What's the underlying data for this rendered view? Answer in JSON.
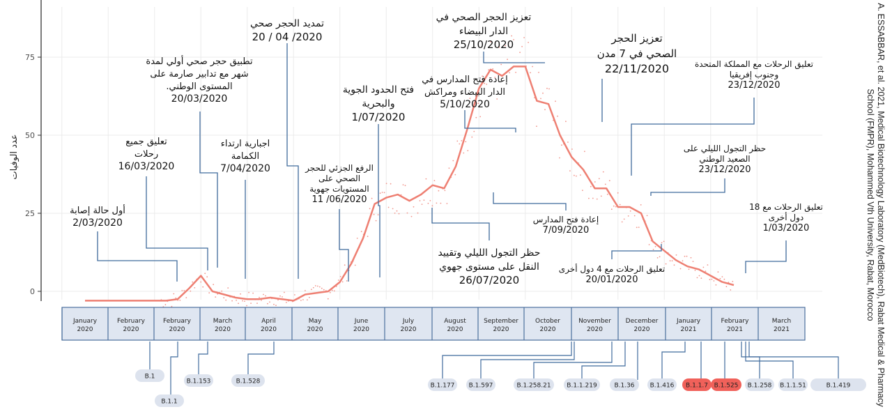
{
  "chart_data": {
    "type": "line",
    "ylabel": "عدد الوفيات",
    "y_ticks": [
      0,
      25,
      50,
      75
    ],
    "ylim": [
      -3,
      90
    ],
    "x_range_months": [
      0,
      14.5
    ],
    "smoothed_series": {
      "x": [
        0,
        0.5,
        1,
        1.5,
        1.75,
        2.0,
        2.25,
        2.5,
        2.75,
        3.0,
        3.25,
        3.5,
        3.75,
        4.0,
        4.25,
        4.5,
        4.75,
        5.0,
        5.25,
        5.5,
        5.75,
        6.0,
        6.25,
        6.5,
        6.75,
        7.0,
        7.25,
        7.5,
        7.75,
        8.0,
        8.25,
        8.5,
        8.75,
        9.0,
        9.25,
        9.5,
        9.75,
        10.0,
        10.25,
        10.5,
        10.75,
        11.0,
        11.25,
        11.5,
        11.75,
        12.0,
        12.25,
        12.5,
        12.75,
        13.0,
        13.25,
        13.5,
        13.75,
        14.0
      ],
      "y": [
        -3,
        -3,
        -3,
        -3,
        -3,
        -2.5,
        1,
        5,
        0,
        -1,
        -2,
        -2.5,
        -2.5,
        -2,
        -2.5,
        -3,
        -1,
        -0.5,
        0,
        3,
        9,
        17,
        28,
        30,
        31,
        29,
        31,
        34,
        33,
        40,
        52,
        65,
        71,
        69,
        72,
        72,
        61,
        60,
        50,
        43,
        39,
        33,
        33,
        27,
        27,
        25,
        16,
        13,
        10,
        8,
        7,
        5,
        3,
        2
      ]
    },
    "events": [
      {
        "lines": [
          "أول حالة إصابة",
          "2/03/2020"
        ]
      },
      {
        "lines": [
          "تعليق جميع",
          "رحلات",
          "16/03/2020"
        ]
      },
      {
        "lines": [
          "تطبيق حجر صحي أولي لمدة",
          "شهر مع تدابير صارمة على",
          ".المستوى الوطني",
          "20/03/2020"
        ]
      },
      {
        "lines": [
          "اجبارية ارتداء",
          "الكمامة",
          "7/04/2020"
        ]
      },
      {
        "lines": [
          "تمديد الحجر صحي",
          "20 / 04 /2020"
        ]
      },
      {
        "lines": [
          "الرفع الجزئي للحجر",
          "الصحي على",
          "المستويات جهوية",
          "11 /06/2020"
        ]
      },
      {
        "lines": [
          "فتح الحدود الجوية",
          "والبحرية",
          "1/07/2020"
        ]
      },
      {
        "lines": [
          "حظر التجول الليلي وتقييد",
          "النقل على مستوى جهوي",
          "26/07/2020"
        ]
      },
      {
        "lines": [
          "تعزيز الحجر الصحي في",
          "الدار البيضاء",
          "25/10/2020"
        ]
      },
      {
        "lines": [
          "إعادة فتح المدارس في",
          "الدار البيضاء ومراكش",
          "5/10/2020"
        ]
      },
      {
        "lines": [
          "إعادة فتح المدارس",
          "7/09/2020"
        ]
      },
      {
        "lines": [
          "تعزيز الحجر",
          "الصحي في 7 مدن",
          "22/11/2020"
        ]
      },
      {
        "lines": [
          "تعليق الرحلات مع المملكة المتحدة",
          "وجنوب إفريقيا",
          "23/12/2020"
        ]
      },
      {
        "lines": [
          "حظر التجول الليلي على",
          "الصعيد الوطني",
          "23/12/2020"
        ]
      },
      {
        "lines": [
          "تعليق الرحلات مع 4 دول أخرى",
          "20/01/2020"
        ]
      },
      {
        "lines": [
          "تعليق الرحلات مع 18",
          "دول أخرى",
          "1/03/2020"
        ]
      }
    ],
    "months": [
      {
        "name": "January",
        "year": "2020"
      },
      {
        "name": "February",
        "year": "2020"
      },
      {
        "name": "February",
        "year": "2020"
      },
      {
        "name": "March",
        "year": "2020"
      },
      {
        "name": "April",
        "year": "2020"
      },
      {
        "name": "May",
        "year": "2020"
      },
      {
        "name": "June",
        "year": "2020"
      },
      {
        "name": "July",
        "year": "2020"
      },
      {
        "name": "August",
        "year": "2020"
      },
      {
        "name": "September",
        "year": "2020"
      },
      {
        "name": "October",
        "year": "2020"
      },
      {
        "name": "November",
        "year": "2020"
      },
      {
        "name": "December",
        "year": "2020"
      },
      {
        "name": "January",
        "year": "2021"
      },
      {
        "name": "February",
        "year": "2021"
      },
      {
        "name": "March",
        "year": "2021"
      }
    ],
    "variants": [
      {
        "name": "B.1",
        "highlight": false
      },
      {
        "name": "B.1.1",
        "highlight": false
      },
      {
        "name": "B.1.153",
        "highlight": false
      },
      {
        "name": "B.1.528",
        "highlight": false
      },
      {
        "name": "B.1.177",
        "highlight": false
      },
      {
        "name": "B.1.597",
        "highlight": false
      },
      {
        "name": "B.1.258.21",
        "highlight": false
      },
      {
        "name": "B.1.1.219",
        "highlight": false
      },
      {
        "name": "B.1.36",
        "highlight": false
      },
      {
        "name": "B.1.416",
        "highlight": false
      },
      {
        "name": "B.1.1.7",
        "highlight": true
      },
      {
        "name": "B.1.525",
        "highlight": true
      },
      {
        "name": "B.1.258",
        "highlight": false
      },
      {
        "name": "B.1.1.51",
        "highlight": false
      },
      {
        "name": "B.1.419",
        "highlight": false
      }
    ],
    "colors": {
      "line": "#ee7f72",
      "points": "#f08b80",
      "connector": "#3f6a9c",
      "month_box_fill": "#dfe6f1",
      "month_box_stroke": "#4a6f9c",
      "pill_fill": "#dde3ee",
      "pill_highlight": "#f0615a",
      "grid": "#ebebeb"
    }
  },
  "credit": "A. ESSABBAR, et al. 2021, Medical Biotechnology Laboratory (MedBiotech), Rabat Medical & Pharmacy School (FMPR), Mohammed Vth University, Rabat, Morocco"
}
